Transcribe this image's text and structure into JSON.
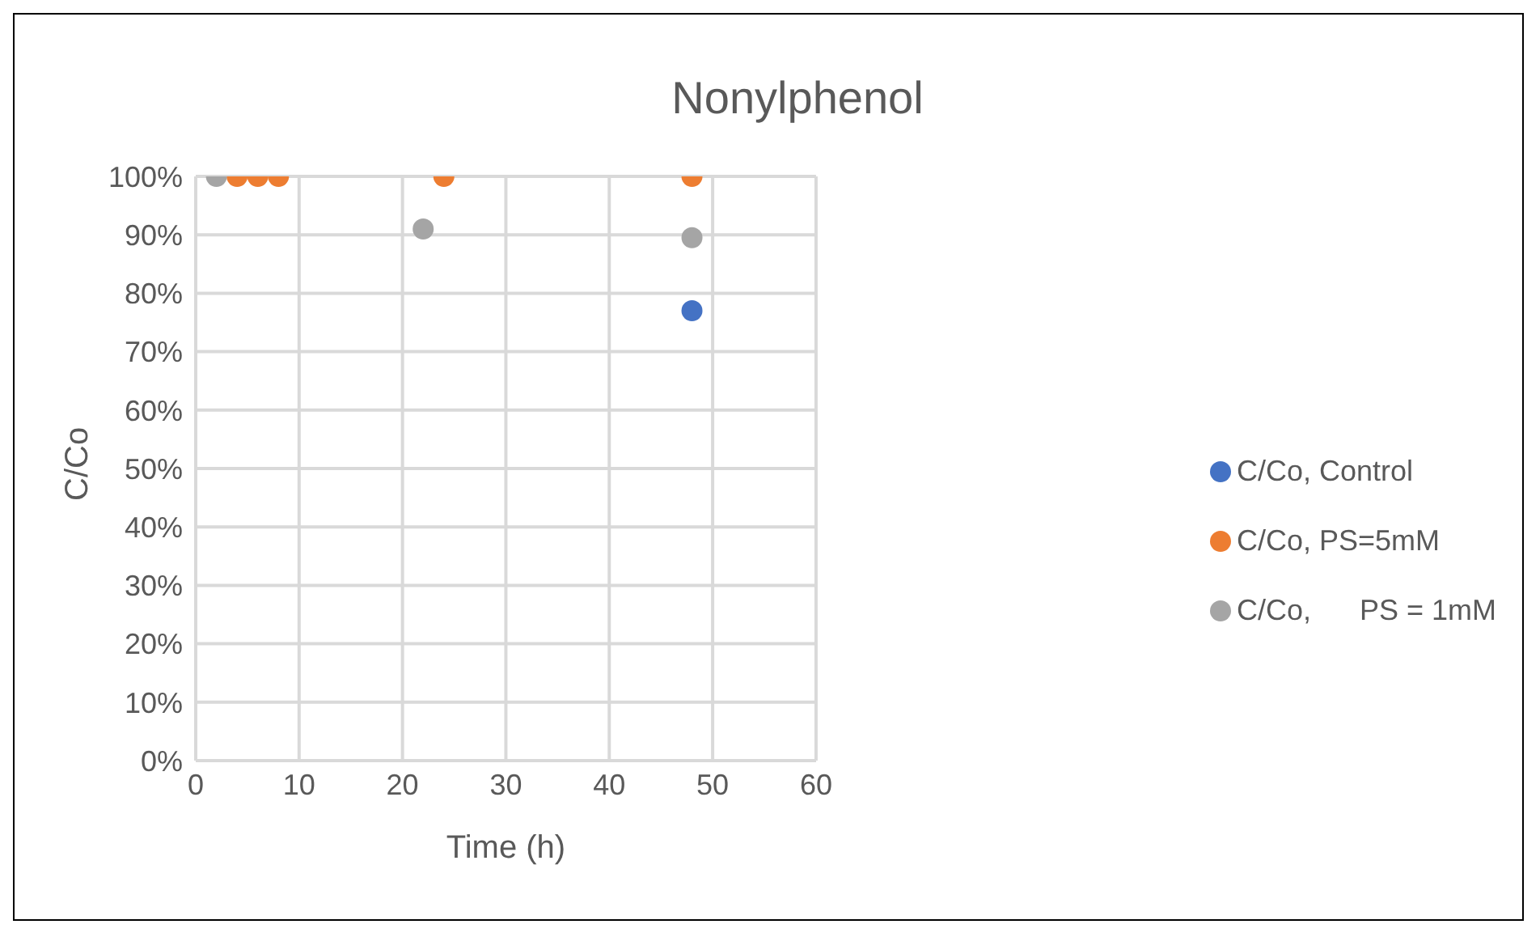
{
  "chart_data": {
    "type": "scatter",
    "title": "Nonylphenol",
    "xlabel": "Time (h)",
    "ylabel": "C/Co",
    "xlim": [
      0,
      60
    ],
    "xticks": [
      0,
      10,
      20,
      30,
      40,
      50,
      60
    ],
    "ylim": [
      0,
      100
    ],
    "yticks": [
      {
        "value": 0,
        "label": "0%"
      },
      {
        "value": 10,
        "label": "10%"
      },
      {
        "value": 20,
        "label": "20%"
      },
      {
        "value": 30,
        "label": "30%"
      },
      {
        "value": 40,
        "label": "40%"
      },
      {
        "value": 50,
        "label": "50%"
      },
      {
        "value": 60,
        "label": "60%"
      },
      {
        "value": 70,
        "label": "70%"
      },
      {
        "value": 80,
        "label": "80%"
      },
      {
        "value": 90,
        "label": "90%"
      },
      {
        "value": 100,
        "label": "100%"
      }
    ],
    "grid": true,
    "legend": "right",
    "marker": "circle",
    "series": [
      {
        "name": "C/Co, Control",
        "color": "#4472c4",
        "x": [
          48
        ],
        "values": [
          77
        ]
      },
      {
        "name": "C/Co, PS=5mM",
        "color": "#ed7d31",
        "x": [
          4,
          6,
          8,
          24,
          48
        ],
        "values": [
          100,
          100,
          100,
          100,
          100
        ]
      },
      {
        "name": "C/Co,      PS = 1mM",
        "color": "#a5a5a5",
        "x": [
          2,
          22,
          48
        ],
        "values": [
          100,
          91,
          89.5
        ]
      }
    ]
  }
}
